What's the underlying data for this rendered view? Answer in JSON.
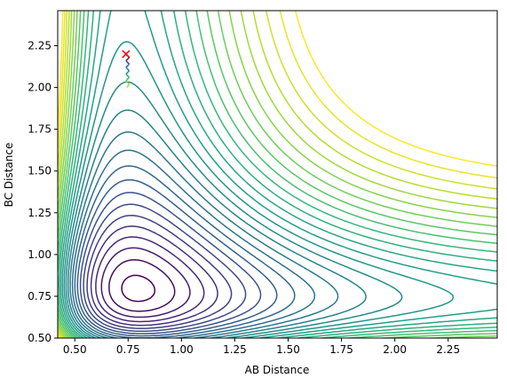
{
  "chart_data": {
    "type": "contour",
    "xlabel": "AB Distance",
    "ylabel": "BC Distance",
    "xlim": [
      0.42,
      2.48
    ],
    "ylim": [
      0.5,
      2.46
    ],
    "x_ticks": [
      0.5,
      0.75,
      1.0,
      1.25,
      1.5,
      1.75,
      2.0,
      2.25
    ],
    "x_tick_labels": [
      "0.50",
      "0.75",
      "1.00",
      "1.25",
      "1.50",
      "1.75",
      "2.00",
      "2.25"
    ],
    "y_ticks": [
      0.5,
      0.75,
      1.0,
      1.25,
      1.5,
      1.75,
      2.0,
      2.25
    ],
    "y_tick_labels": [
      "0.50",
      "0.75",
      "1.00",
      "1.25",
      "1.50",
      "1.75",
      "2.00",
      "2.25"
    ],
    "colormap": "viridis",
    "contour_levels": 28,
    "grid": false,
    "trajectory": {
      "color": "#7b3fbf",
      "points": [
        [
          0.74,
          2.2
        ],
        [
          0.755,
          2.18
        ],
        [
          0.74,
          2.16
        ],
        [
          0.755,
          2.14
        ],
        [
          0.74,
          2.12
        ],
        [
          0.755,
          2.1
        ],
        [
          0.74,
          2.08
        ],
        [
          0.755,
          2.06
        ],
        [
          0.74,
          2.04
        ],
        [
          0.755,
          2.02
        ],
        [
          0.745,
          2.0
        ]
      ]
    },
    "start_marker": {
      "x": 0.74,
      "y": 2.2,
      "symbol": "x",
      "color": "#ff0000"
    }
  }
}
